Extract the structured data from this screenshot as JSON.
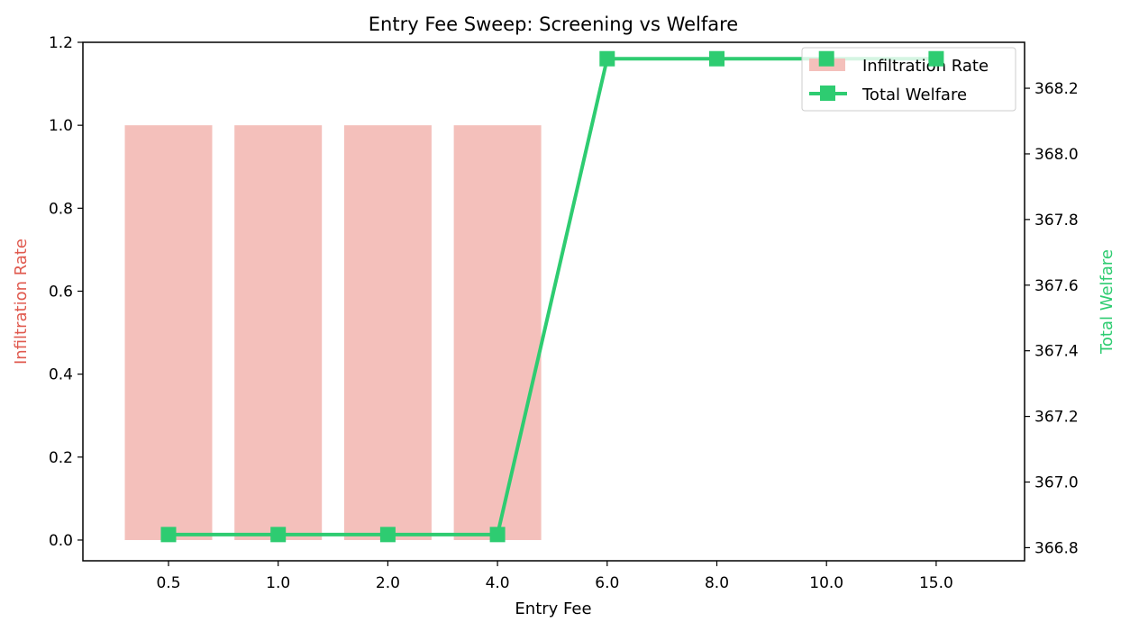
{
  "chart_data": {
    "type": "bar+line",
    "title": "Entry Fee Sweep: Screening vs Welfare",
    "xlabel": "Entry Fee",
    "categories": [
      "0.5",
      "1.0",
      "2.0",
      "4.0",
      "6.0",
      "8.0",
      "10.0",
      "15.0"
    ],
    "left_axis": {
      "label": "Infiltration Rate",
      "color": "#e05a4f",
      "ylim": [
        -0.05,
        1.2
      ],
      "ticks": [
        "0.0",
        "0.2",
        "0.4",
        "0.6",
        "0.8",
        "1.0",
        "1.2"
      ]
    },
    "right_axis": {
      "label": "Total Welfare",
      "color": "#2ecc71",
      "ylim": [
        366.76,
        368.34
      ],
      "ticks": [
        "366.8",
        "367.0",
        "367.2",
        "367.4",
        "367.6",
        "367.8",
        "368.0",
        "368.2"
      ]
    },
    "series": [
      {
        "name": "Infiltration Rate",
        "type": "bar",
        "axis": "left",
        "color": "#f4c0bb",
        "values": [
          1.0,
          1.0,
          1.0,
          1.0,
          0.0,
          0.0,
          0.0,
          0.0
        ]
      },
      {
        "name": "Total Welfare",
        "type": "line",
        "axis": "right",
        "color": "#2ecc71",
        "marker": "square",
        "values": [
          366.84,
          366.84,
          366.84,
          366.84,
          368.29,
          368.29,
          368.29,
          368.29
        ]
      }
    ],
    "legend_position": "top-right",
    "grid": false
  }
}
